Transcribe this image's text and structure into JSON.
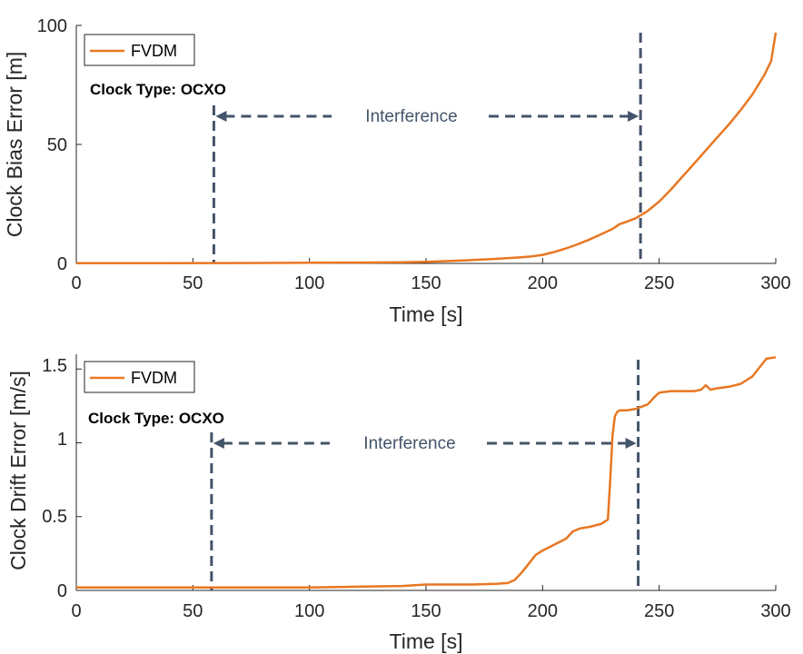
{
  "chart_data": [
    {
      "type": "line",
      "xlabel": "Time [s]",
      "ylabel": "Clock Bias Error [m]",
      "xlim": [
        0,
        300
      ],
      "ylim": [
        0,
        100
      ],
      "xticks": [
        "0",
        "50",
        "100",
        "150",
        "200",
        "250",
        "300"
      ],
      "yticks": [
        "0",
        "50",
        "100"
      ],
      "grid": false,
      "legend_position": "top-left",
      "annotation_note": "Clock Type: OCXO",
      "interference_label": "Interference",
      "interference_start": 59,
      "interference_end": 242,
      "colors": {
        "line": "#e87722",
        "marker_lines": "#44546a"
      },
      "series": [
        {
          "name": "FVDM",
          "x": [
            0,
            20,
            40,
            60,
            80,
            100,
            120,
            140,
            150,
            160,
            170,
            180,
            190,
            195,
            200,
            205,
            210,
            215,
            220,
            225,
            230,
            233,
            236,
            240,
            245,
            250,
            255,
            260,
            265,
            270,
            275,
            280,
            285,
            290,
            295,
            298,
            300
          ],
          "y": [
            0.1,
            0.1,
            0.1,
            0.15,
            0.2,
            0.25,
            0.35,
            0.5,
            0.7,
            1.0,
            1.4,
            1.9,
            2.5,
            2.9,
            3.6,
            4.8,
            6.3,
            8.0,
            10.0,
            12.2,
            14.5,
            16.5,
            17.5,
            19.0,
            22.0,
            26.0,
            31.0,
            36.5,
            42.0,
            47.5,
            53.0,
            58.5,
            64.5,
            71.0,
            79.0,
            85.0,
            97.0
          ]
        }
      ]
    },
    {
      "type": "line",
      "xlabel": "Time [s]",
      "ylabel": "Clock Drift Error [m/s]",
      "xlim": [
        0,
        300
      ],
      "ylim": [
        0,
        1.6
      ],
      "xticks": [
        "0",
        "50",
        "100",
        "150",
        "200",
        "250",
        "300"
      ],
      "yticks": [
        "0",
        "0.5",
        "1",
        "1.5"
      ],
      "grid": false,
      "legend_position": "top-left",
      "annotation_note": "Clock Type: OCXO",
      "interference_label": "Interference",
      "interference_start": 58,
      "interference_end": 241,
      "colors": {
        "line": "#e87722",
        "marker_lines": "#44546a"
      },
      "series": [
        {
          "name": "FVDM",
          "x": [
            0,
            20,
            40,
            60,
            80,
            100,
            120,
            140,
            150,
            160,
            170,
            180,
            185,
            188,
            191,
            194,
            197,
            200,
            205,
            210,
            213,
            216,
            220,
            225,
            228,
            229,
            230,
            231,
            232,
            233,
            234,
            236,
            240,
            245,
            248,
            250,
            255,
            260,
            265,
            268,
            270,
            272,
            275,
            280,
            285,
            290,
            293,
            296,
            300
          ],
          "y": [
            0.02,
            0.02,
            0.02,
            0.02,
            0.02,
            0.02,
            0.025,
            0.03,
            0.04,
            0.04,
            0.04,
            0.045,
            0.05,
            0.07,
            0.12,
            0.18,
            0.24,
            0.27,
            0.31,
            0.35,
            0.4,
            0.42,
            0.43,
            0.45,
            0.48,
            0.75,
            1.05,
            1.18,
            1.21,
            1.22,
            1.22,
            1.22,
            1.23,
            1.26,
            1.31,
            1.34,
            1.35,
            1.35,
            1.35,
            1.36,
            1.39,
            1.36,
            1.37,
            1.38,
            1.4,
            1.45,
            1.51,
            1.57,
            1.58
          ]
        }
      ]
    }
  ]
}
